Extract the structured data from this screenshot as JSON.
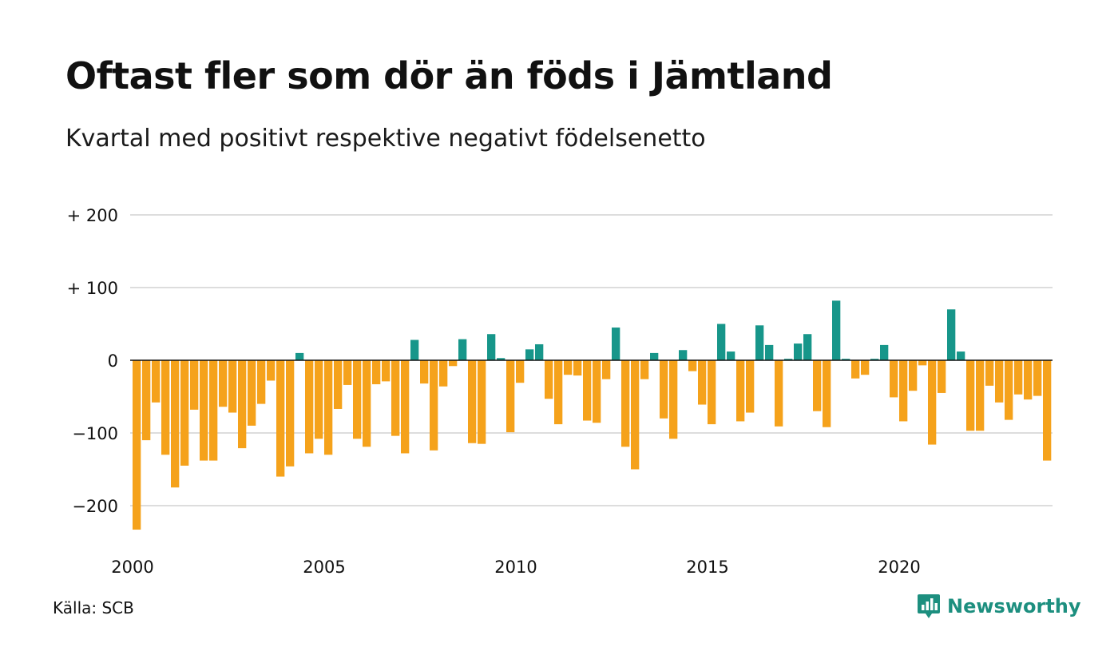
{
  "header": {
    "title": "Oftast fler som dör än föds i Jämtland",
    "subtitle": "Kvartal med positivt respektive negativt födelsenetto"
  },
  "footer": {
    "source": "Källa: SCB",
    "brand": "Newsworthy",
    "brand_icon": "bar-chart-speech-bubble-icon"
  },
  "colors": {
    "positive": "#17968a",
    "negative": "#f5a21b",
    "grid": "#dddddd",
    "zero_line": "#111111",
    "brand": "#1d8f7f"
  },
  "chart_data": {
    "type": "bar",
    "title": "Oftast fler som dör än föds i Jämtland",
    "subtitle": "Kvartal med positivt respektive negativt födelsenetto",
    "grid": true,
    "legend": "none",
    "ylim": [
      -250,
      200
    ],
    "yticks": [
      {
        "value": 200,
        "label": "+ 200"
      },
      {
        "value": 100,
        "label": "+ 100"
      },
      {
        "value": 0,
        "label": "0"
      },
      {
        "value": -100,
        "label": "−100"
      },
      {
        "value": -200,
        "label": "−200"
      }
    ],
    "xticks": [
      "2000",
      "2005",
      "2010",
      "2015",
      "2020"
    ],
    "start_year": 2000,
    "periods_per_year": 4,
    "values": [
      -233,
      -110,
      -58,
      -130,
      -175,
      -145,
      -68,
      -138,
      -138,
      -64,
      -72,
      -121,
      -90,
      -60,
      -28,
      -160,
      -146,
      10,
      -128,
      -108,
      -130,
      -67,
      -34,
      -108,
      -119,
      -33,
      -29,
      -104,
      -128,
      28,
      -32,
      -124,
      -36,
      -8,
      29,
      -114,
      -115,
      36,
      3,
      -99,
      -31,
      15,
      22,
      -53,
      -88,
      -20,
      -21,
      -83,
      -86,
      -26,
      45,
      -119,
      -150,
      -26,
      10,
      -80,
      -108,
      14,
      -15,
      -61,
      -88,
      50,
      12,
      -84,
      -72,
      48,
      21,
      -91,
      2,
      23,
      36,
      -70,
      -92,
      82,
      2,
      -25,
      -20,
      2,
      21,
      -51,
      -84,
      -42,
      -7,
      -116,
      -45,
      70,
      12,
      -97,
      -97,
      -35,
      -58,
      -82,
      -47,
      -54,
      -49,
      -138
    ]
  }
}
